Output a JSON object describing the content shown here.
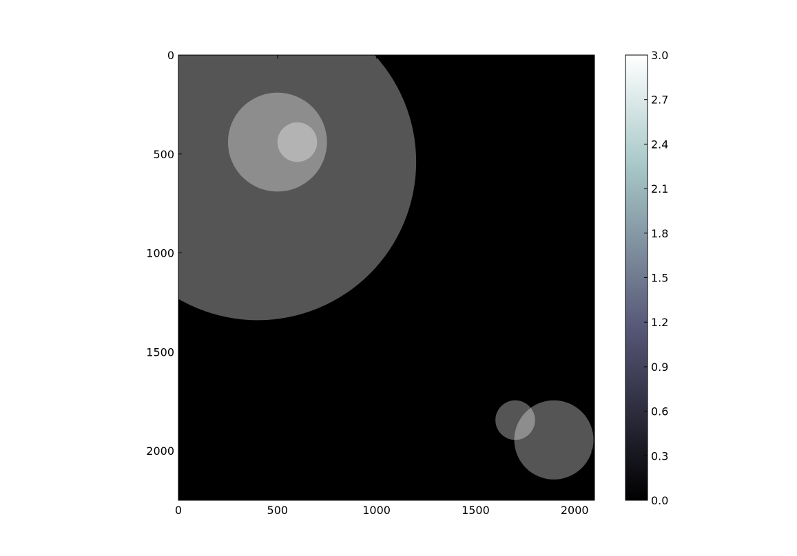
{
  "chart_data": {
    "type": "heatmap",
    "title": "",
    "xlabel": "",
    "ylabel": "",
    "xlim": [
      0,
      2100
    ],
    "ylim": [
      2250,
      0
    ],
    "xticks": [
      0,
      500,
      1000,
      1500,
      2000
    ],
    "yticks": [
      0,
      500,
      1000,
      1500,
      2000
    ],
    "xtick_labels": [
      "0",
      "500",
      "1000",
      "1500",
      "2000"
    ],
    "ytick_labels": [
      "0",
      "500",
      "1000",
      "1500",
      "2000"
    ],
    "background_value": 0,
    "colormap": "bone",
    "colorbar": {
      "range": [
        0,
        3
      ],
      "ticks": [
        0.0,
        0.3,
        0.6,
        0.9,
        1.2,
        1.5,
        1.8,
        2.1,
        2.4,
        2.7,
        3.0
      ],
      "tick_labels": [
        "0.0",
        "0.3",
        "0.6",
        "0.9",
        "1.2",
        "1.5",
        "1.8",
        "2.1",
        "2.4",
        "2.7",
        "3.0"
      ],
      "placement": "right"
    },
    "circles": [
      {
        "cx": 400,
        "cy": 540,
        "r": 800,
        "value": 1
      },
      {
        "cx": 500,
        "cy": 440,
        "r": 250,
        "value": 1
      },
      {
        "cx": 600,
        "cy": 440,
        "r": 100,
        "value": 1
      },
      {
        "cx": 1700,
        "cy": 1845,
        "r": 100,
        "value": 1
      },
      {
        "cx": 1895,
        "cy": 1945,
        "r": 200,
        "value": 1
      }
    ],
    "grid": false
  }
}
